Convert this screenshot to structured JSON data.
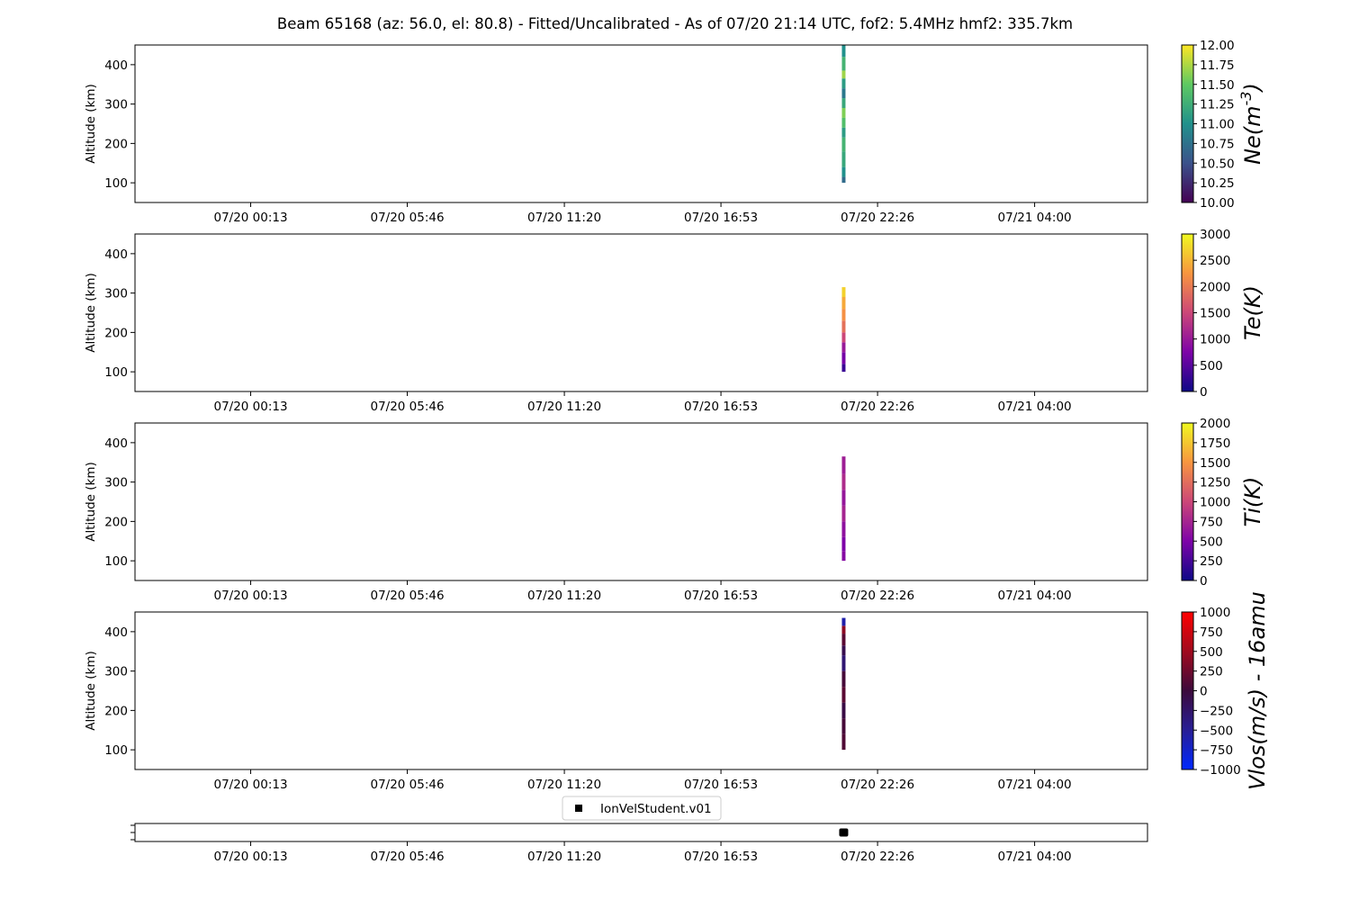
{
  "title": "Beam 65168 (az: 56.0, el: 80.8) - Fitted/Uncalibrated - As of 07/20 21:14 UTC, fof2: 5.4MHz  hmf2: 335.7km",
  "chart_data": [
    {
      "type": "heatmap",
      "ylabel": "Altitude (km)",
      "ylim": [
        50,
        450
      ],
      "yticks": [
        100,
        200,
        300,
        400
      ],
      "xlim": [
        "07/19 20:07",
        "07/21 08:00"
      ],
      "xticks": [
        "07/20 00:13",
        "07/20 05:46",
        "07/20 11:20",
        "07/20 16:53",
        "07/20 22:26",
        "07/21 04:00"
      ],
      "colorbar": {
        "label": "Ne(m^-3)",
        "colormap": "viridis",
        "range": [
          10.0,
          12.0
        ],
        "ticks": [
          "12.00",
          "11.75",
          "11.50",
          "11.25",
          "11.00",
          "10.75",
          "10.50",
          "10.25",
          "10.00"
        ]
      },
      "data": [
        {
          "time": "07/20 21:14",
          "alt_range": [
            100,
            450
          ],
          "segments": [
            {
              "alt": [
                100,
                115
              ],
              "value": 10.7
            },
            {
              "alt": [
                115,
                140
              ],
              "value": 11.0
            },
            {
              "alt": [
                140,
                180
              ],
              "value": 11.2
            },
            {
              "alt": [
                180,
                215
              ],
              "value": 11.3
            },
            {
              "alt": [
                215,
                240
              ],
              "value": 11.1
            },
            {
              "alt": [
                240,
                265
              ],
              "value": 11.4
            },
            {
              "alt": [
                265,
                290
              ],
              "value": 11.6
            },
            {
              "alt": [
                290,
                315
              ],
              "value": 11.2
            },
            {
              "alt": [
                315,
                340
              ],
              "value": 10.8
            },
            {
              "alt": [
                340,
                365
              ],
              "value": 11.1
            },
            {
              "alt": [
                365,
                385
              ],
              "value": 11.7
            },
            {
              "alt": [
                385,
                420
              ],
              "value": 11.3
            },
            {
              "alt": [
                420,
                450
              ],
              "value": 11.0
            }
          ]
        }
      ]
    },
    {
      "type": "heatmap",
      "ylabel": "Altitude (km)",
      "ylim": [
        50,
        450
      ],
      "yticks": [
        100,
        200,
        300,
        400
      ],
      "xlim": [
        "07/19 20:07",
        "07/21 08:00"
      ],
      "xticks": [
        "07/20 00:13",
        "07/20 05:46",
        "07/20 11:20",
        "07/20 16:53",
        "07/20 22:26",
        "07/21 04:00"
      ],
      "colorbar": {
        "label": "Te(K)",
        "colormap": "plasma",
        "range": [
          0,
          3000
        ],
        "ticks": [
          "3000",
          "2500",
          "2000",
          "1500",
          "1000",
          "500",
          "0"
        ]
      },
      "data": [
        {
          "time": "07/20 21:14",
          "alt_range": [
            100,
            315
          ],
          "segments": [
            {
              "alt": [
                100,
                120
              ],
              "value": 300
            },
            {
              "alt": [
                120,
                150
              ],
              "value": 700
            },
            {
              "alt": [
                150,
                175
              ],
              "value": 1000
            },
            {
              "alt": [
                175,
                200
              ],
              "value": 1500
            },
            {
              "alt": [
                200,
                230
              ],
              "value": 1900
            },
            {
              "alt": [
                230,
                260
              ],
              "value": 2200
            },
            {
              "alt": [
                260,
                290
              ],
              "value": 2400
            },
            {
              "alt": [
                290,
                315
              ],
              "value": 2700
            }
          ]
        }
      ]
    },
    {
      "type": "heatmap",
      "ylabel": "Altitude (km)",
      "ylim": [
        50,
        450
      ],
      "yticks": [
        100,
        200,
        300,
        400
      ],
      "xlim": [
        "07/19 20:07",
        "07/21 08:00"
      ],
      "xticks": [
        "07/20 00:13",
        "07/20 05:46",
        "07/20 11:20",
        "07/20 16:53",
        "07/20 22:26",
        "07/21 04:00"
      ],
      "colorbar": {
        "label": "Ti(K)",
        "colormap": "plasma",
        "range": [
          0,
          2000
        ],
        "ticks": [
          "2000",
          "1750",
          "1500",
          "1250",
          "1000",
          "750",
          "500",
          "250",
          "0"
        ]
      },
      "data": [
        {
          "time": "07/20 21:14",
          "alt_range": [
            100,
            365
          ],
          "segments": [
            {
              "alt": [
                100,
                125
              ],
              "value": 550
            },
            {
              "alt": [
                125,
                160
              ],
              "value": 500
            },
            {
              "alt": [
                160,
                200
              ],
              "value": 600
            },
            {
              "alt": [
                200,
                240
              ],
              "value": 750
            },
            {
              "alt": [
                240,
                280
              ],
              "value": 650
            },
            {
              "alt": [
                280,
                320
              ],
              "value": 800
            },
            {
              "alt": [
                320,
                365
              ],
              "value": 700
            }
          ]
        }
      ]
    },
    {
      "type": "heatmap",
      "ylabel": "Altitude (km)",
      "ylim": [
        50,
        450
      ],
      "yticks": [
        100,
        200,
        300,
        400
      ],
      "xlim": [
        "07/19 20:07",
        "07/21 08:00"
      ],
      "xticks": [
        "07/20 00:13",
        "07/20 05:46",
        "07/20 11:20",
        "07/20 16:53",
        "07/20 22:26",
        "07/21 04:00"
      ],
      "colorbar": {
        "label": "Vlos(m/s) - 16amu",
        "colormap": "bwr-dark",
        "range": [
          -1000,
          1000
        ],
        "ticks": [
          "1000",
          "750",
          "500",
          "250",
          "0",
          "−250",
          "−500",
          "−750",
          "−1000"
        ]
      },
      "data": [
        {
          "time": "07/20 21:14",
          "alt_range": [
            100,
            435
          ],
          "segments": [
            {
              "alt": [
                100,
                140
              ],
              "value": 100
            },
            {
              "alt": [
                140,
                180
              ],
              "value": 50
            },
            {
              "alt": [
                180,
                220
              ],
              "value": -50
            },
            {
              "alt": [
                220,
                260
              ],
              "value": 150
            },
            {
              "alt": [
                260,
                300
              ],
              "value": 50
            },
            {
              "alt": [
                300,
                340
              ],
              "value": -300
            },
            {
              "alt": [
                340,
                365
              ],
              "value": -100
            },
            {
              "alt": [
                365,
                395
              ],
              "value": 150
            },
            {
              "alt": [
                395,
                415
              ],
              "value": 400
            },
            {
              "alt": [
                415,
                435
              ],
              "value": -600
            }
          ]
        }
      ]
    },
    {
      "type": "scatter",
      "legend": [
        "IonVelStudent.v01"
      ],
      "legend_placement": "top-center",
      "xlim": [
        "07/19 20:07",
        "07/21 08:00"
      ],
      "xticks": [
        "07/20 00:13",
        "07/20 05:46",
        "07/20 11:20",
        "07/20 16:53",
        "07/20 22:26",
        "07/21 04:00"
      ],
      "points": [
        {
          "time": "07/20 21:14",
          "marker": "square",
          "color": "#000000"
        }
      ]
    }
  ]
}
